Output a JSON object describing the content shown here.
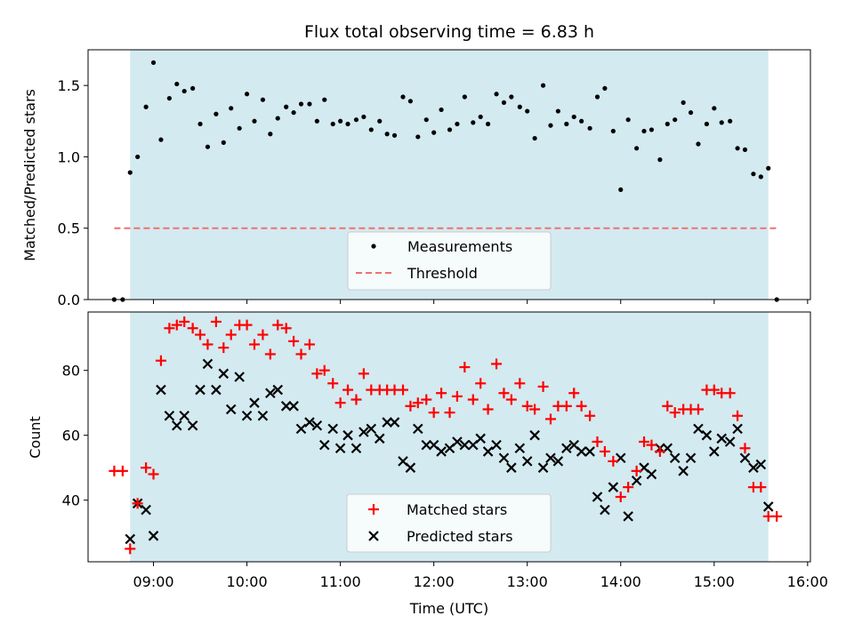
{
  "chart_data": [
    {
      "type": "scatter",
      "title": "Flux total observing time = 6.83 h",
      "xlabel": "",
      "ylabel": "Matched/Predicted stars",
      "xlim": [
        8.3,
        16.03
      ],
      "ylim": [
        0,
        1.75
      ],
      "yticks": [
        0.0,
        0.5,
        1.0,
        1.5
      ],
      "yticklabels": [
        "0.0",
        "0.5",
        "1.0",
        "1.5"
      ],
      "observing_window": [
        8.75,
        15.58
      ],
      "observing_window_color": "#d3eaf0",
      "series": [
        {
          "name": "Measurements",
          "marker": "dot",
          "color": "#000000",
          "x": [
            8.58,
            8.67,
            8.75,
            8.83,
            8.92,
            9.0,
            9.08,
            9.17,
            9.25,
            9.33,
            9.42,
            9.5,
            9.58,
            9.67,
            9.75,
            9.83,
            9.92,
            10.0,
            10.08,
            10.17,
            10.25,
            10.33,
            10.42,
            10.5,
            10.58,
            10.67,
            10.75,
            10.83,
            10.92,
            11.0,
            11.08,
            11.17,
            11.25,
            11.33,
            11.42,
            11.5,
            11.58,
            11.67,
            11.75,
            11.83,
            11.92,
            12.0,
            12.08,
            12.17,
            12.25,
            12.33,
            12.42,
            12.5,
            12.58,
            12.67,
            12.75,
            12.83,
            12.92,
            13.0,
            13.08,
            13.17,
            13.25,
            13.33,
            13.42,
            13.5,
            13.58,
            13.67,
            13.75,
            13.83,
            13.92,
            14.0,
            14.08,
            14.17,
            14.25,
            14.33,
            14.42,
            14.5,
            14.58,
            14.67,
            14.75,
            14.83,
            14.92,
            15.0,
            15.08,
            15.17,
            15.25,
            15.33,
            15.42,
            15.5,
            15.58,
            15.67
          ],
          "values": [
            0.0,
            0.0,
            0.89,
            1.0,
            1.35,
            1.66,
            1.12,
            1.41,
            1.51,
            1.46,
            1.48,
            1.23,
            1.07,
            1.3,
            1.1,
            1.34,
            1.2,
            1.44,
            1.25,
            1.4,
            1.16,
            1.27,
            1.35,
            1.31,
            1.37,
            1.37,
            1.25,
            1.4,
            1.23,
            1.25,
            1.23,
            1.26,
            1.28,
            1.19,
            1.25,
            1.16,
            1.15,
            1.42,
            1.39,
            1.14,
            1.26,
            1.17,
            1.33,
            1.19,
            1.23,
            1.42,
            1.24,
            1.28,
            1.23,
            1.44,
            1.38,
            1.42,
            1.35,
            1.32,
            1.13,
            1.5,
            1.22,
            1.32,
            1.23,
            1.28,
            1.25,
            1.2,
            1.42,
            1.48,
            1.18,
            0.77,
            1.26,
            1.06,
            1.18,
            1.19,
            0.98,
            1.23,
            1.26,
            1.38,
            1.31,
            1.09,
            1.23,
            1.34,
            1.24,
            1.25,
            1.06,
            1.05,
            0.88,
            0.86,
            0.92,
            0.0
          ]
        },
        {
          "name": "Threshold",
          "marker": "dashed-line",
          "color": "#f07070",
          "x": [
            8.58,
            15.67
          ],
          "values": [
            0.5,
            0.5
          ]
        }
      ],
      "legend_position": "bottom-center"
    },
    {
      "type": "scatter",
      "title": "",
      "xlabel": "Time (UTC)",
      "ylabel": "Count",
      "xlim": [
        8.3,
        16.03
      ],
      "ylim": [
        21,
        98
      ],
      "yticks": [
        40,
        60,
        80
      ],
      "yticklabels": [
        "40",
        "60",
        "80"
      ],
      "xticks": [
        9,
        10,
        11,
        12,
        13,
        14,
        15,
        16
      ],
      "xticklabels": [
        "09:00",
        "10:00",
        "11:00",
        "12:00",
        "13:00",
        "14:00",
        "15:00",
        "16:00"
      ],
      "observing_window": [
        8.75,
        15.58
      ],
      "observing_window_color": "#d3eaf0",
      "series": [
        {
          "name": "Matched stars",
          "marker": "plus",
          "color": "#ff0000",
          "x": [
            8.58,
            8.67,
            8.75,
            8.83,
            8.92,
            9.0,
            9.08,
            9.17,
            9.25,
            9.33,
            9.42,
            9.5,
            9.58,
            9.67,
            9.75,
            9.83,
            9.92,
            10.0,
            10.08,
            10.17,
            10.25,
            10.33,
            10.42,
            10.5,
            10.58,
            10.67,
            10.75,
            10.83,
            10.92,
            11.0,
            11.08,
            11.17,
            11.25,
            11.33,
            11.42,
            11.5,
            11.58,
            11.67,
            11.75,
            11.83,
            11.92,
            12.0,
            12.08,
            12.17,
            12.25,
            12.33,
            12.42,
            12.5,
            12.58,
            12.67,
            12.75,
            12.83,
            12.92,
            13.0,
            13.08,
            13.17,
            13.25,
            13.33,
            13.42,
            13.5,
            13.58,
            13.67,
            13.75,
            13.83,
            13.92,
            14.0,
            14.08,
            14.17,
            14.25,
            14.33,
            14.42,
            14.5,
            14.58,
            14.67,
            14.75,
            14.83,
            14.92,
            15.0,
            15.08,
            15.17,
            15.25,
            15.33,
            15.42,
            15.5,
            15.58,
            15.67
          ],
          "values": [
            49,
            49,
            25,
            39,
            50,
            48,
            83,
            93,
            94,
            95,
            93,
            91,
            88,
            95,
            87,
            91,
            94,
            94,
            88,
            91,
            85,
            94,
            93,
            89,
            85,
            88,
            79,
            80,
            76,
            70,
            74,
            71,
            79,
            74,
            74,
            74,
            74,
            74,
            69,
            70,
            71,
            67,
            73,
            67,
            72,
            81,
            71,
            76,
            68,
            82,
            73,
            71,
            76,
            69,
            68,
            75,
            65,
            69,
            69,
            73,
            69,
            66,
            58,
            55,
            52,
            41,
            44,
            49,
            58,
            57,
            55,
            69,
            67,
            68,
            68,
            68,
            74,
            74,
            73,
            73,
            66,
            56,
            44,
            44,
            35,
            35
          ]
        },
        {
          "name": "Predicted stars",
          "marker": "x",
          "color": "#000000",
          "x": [
            8.75,
            8.83,
            8.92,
            9.0,
            9.08,
            9.17,
            9.25,
            9.33,
            9.42,
            9.5,
            9.58,
            9.67,
            9.75,
            9.83,
            9.92,
            10.0,
            10.08,
            10.17,
            10.25,
            10.33,
            10.42,
            10.5,
            10.58,
            10.67,
            10.75,
            10.83,
            10.92,
            11.0,
            11.08,
            11.17,
            11.25,
            11.33,
            11.42,
            11.5,
            11.58,
            11.67,
            11.75,
            11.83,
            11.92,
            12.0,
            12.08,
            12.17,
            12.25,
            12.33,
            12.42,
            12.5,
            12.58,
            12.67,
            12.75,
            12.83,
            12.92,
            13.0,
            13.08,
            13.17,
            13.25,
            13.33,
            13.42,
            13.5,
            13.58,
            13.67,
            13.75,
            13.83,
            13.92,
            14.0,
            14.08,
            14.17,
            14.25,
            14.33,
            14.42,
            14.5,
            14.58,
            14.67,
            14.75,
            14.83,
            14.92,
            15.0,
            15.08,
            15.17,
            15.25,
            15.33,
            15.42,
            15.5,
            15.58
          ],
          "values": [
            28,
            39,
            37,
            29,
            74,
            66,
            63,
            66,
            63,
            74,
            82,
            74,
            79,
            68,
            78,
            66,
            70,
            66,
            73,
            74,
            69,
            69,
            62,
            64,
            63,
            57,
            62,
            56,
            60,
            56,
            61,
            62,
            59,
            64,
            64,
            52,
            50,
            62,
            57,
            57,
            55,
            56,
            58,
            57,
            57,
            59,
            55,
            57,
            53,
            50,
            56,
            52,
            60,
            50,
            53,
            52,
            56,
            57,
            55,
            55,
            41,
            37,
            44,
            53,
            35,
            46,
            50,
            48,
            56,
            56,
            53,
            49,
            53,
            62,
            60,
            55,
            59,
            58,
            62,
            53,
            50,
            51,
            38
          ]
        }
      ],
      "legend_position": "bottom-center"
    }
  ]
}
